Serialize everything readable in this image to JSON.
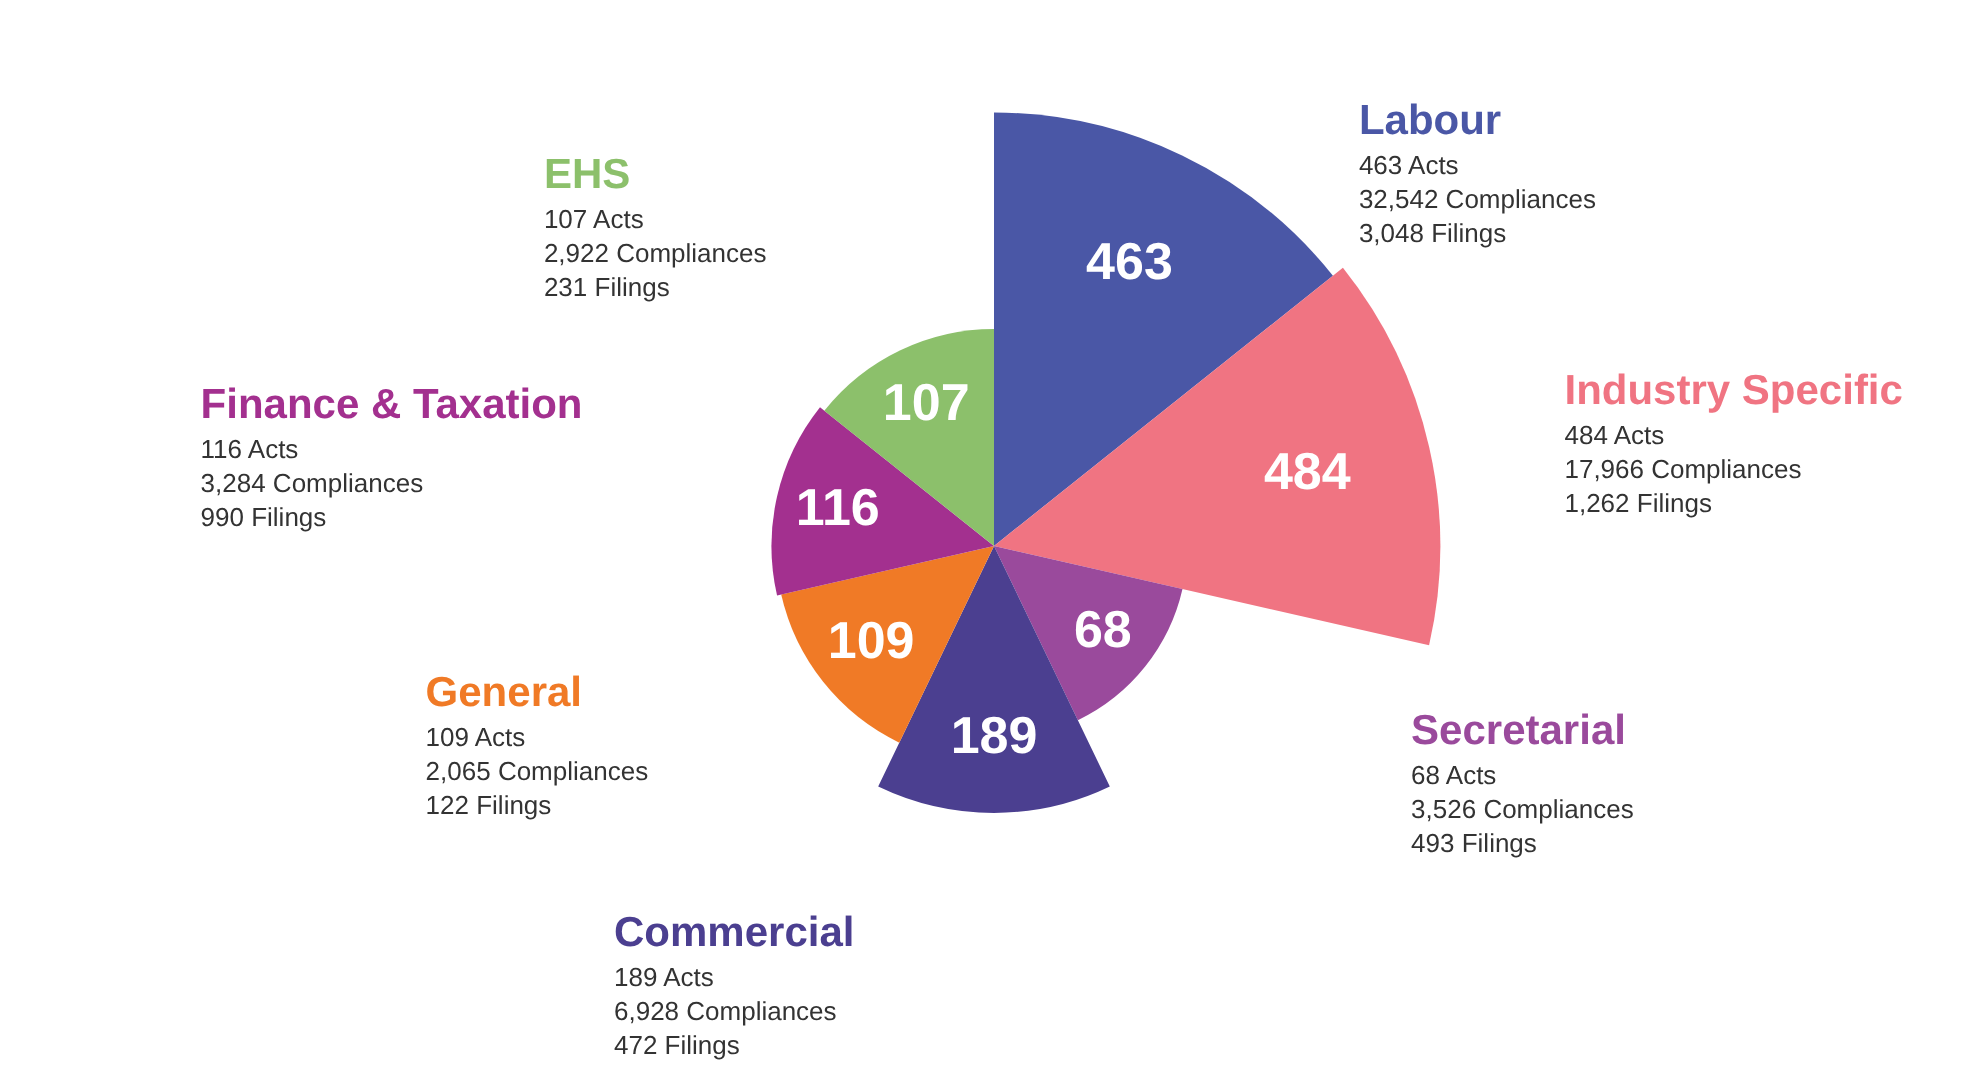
{
  "chart_data": {
    "type": "other",
    "categories": [
      "Labour",
      "Industry Specific",
      "Secretarial",
      "Commercial",
      "General",
      "Finance & Taxation",
      "EHS"
    ],
    "values": [
      463,
      484,
      68,
      189,
      109,
      116,
      107
    ],
    "colors": [
      "#4a57a6",
      "#f07482",
      "#9a4a9c",
      "#4b3f90",
      "#f07a26",
      "#a3308f",
      "#8cc06b"
    ],
    "data_labels": true,
    "annotations": [
      "463 Acts",
      "32,542 Compliances",
      "3,048 Filings",
      "484 Acts",
      "17,966 Compliances",
      "1,262 Filings",
      "68 Acts",
      "3,526 Compliances",
      "493 Filings",
      "189 Acts",
      "6,928 Compliances",
      "472 Filings",
      "109 Acts",
      "2,065 Compliances",
      "122 Filings",
      "116 Acts",
      "3,284 Compliances",
      "990 Filings",
      "107 Acts",
      "2,922 Compliances",
      "231 Filings"
    ]
  }
}
